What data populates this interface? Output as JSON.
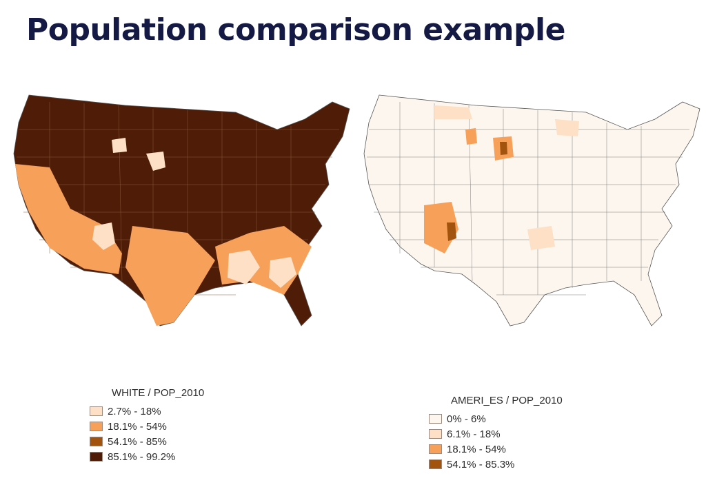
{
  "slide": {
    "title": "Population comparison example"
  },
  "maps": [
    {
      "legend_title": "WHITE / POP_2010",
      "base_color": "#4f1d07",
      "classes": [
        {
          "label": "2.7% - 18%",
          "color": "#fde0c5"
        },
        {
          "label": "18.1% - 54%",
          "color": "#f6a05a"
        },
        {
          "label": "54.1% - 85%",
          "color": "#a2540f"
        },
        {
          "label": "85.1% - 99.2%",
          "color": "#4f1d07"
        }
      ]
    },
    {
      "legend_title": "AMERI_ES / POP_2010",
      "base_color": "#fdf6ee",
      "classes": [
        {
          "label": "0% - 6%",
          "color": "#fdf6ee"
        },
        {
          "label": "6.1% - 18%",
          "color": "#fde0c5"
        },
        {
          "label": "18.1% - 54%",
          "color": "#f6a05a"
        },
        {
          "label": "54.1% - 85.3%",
          "color": "#a2540f"
        }
      ]
    }
  ]
}
